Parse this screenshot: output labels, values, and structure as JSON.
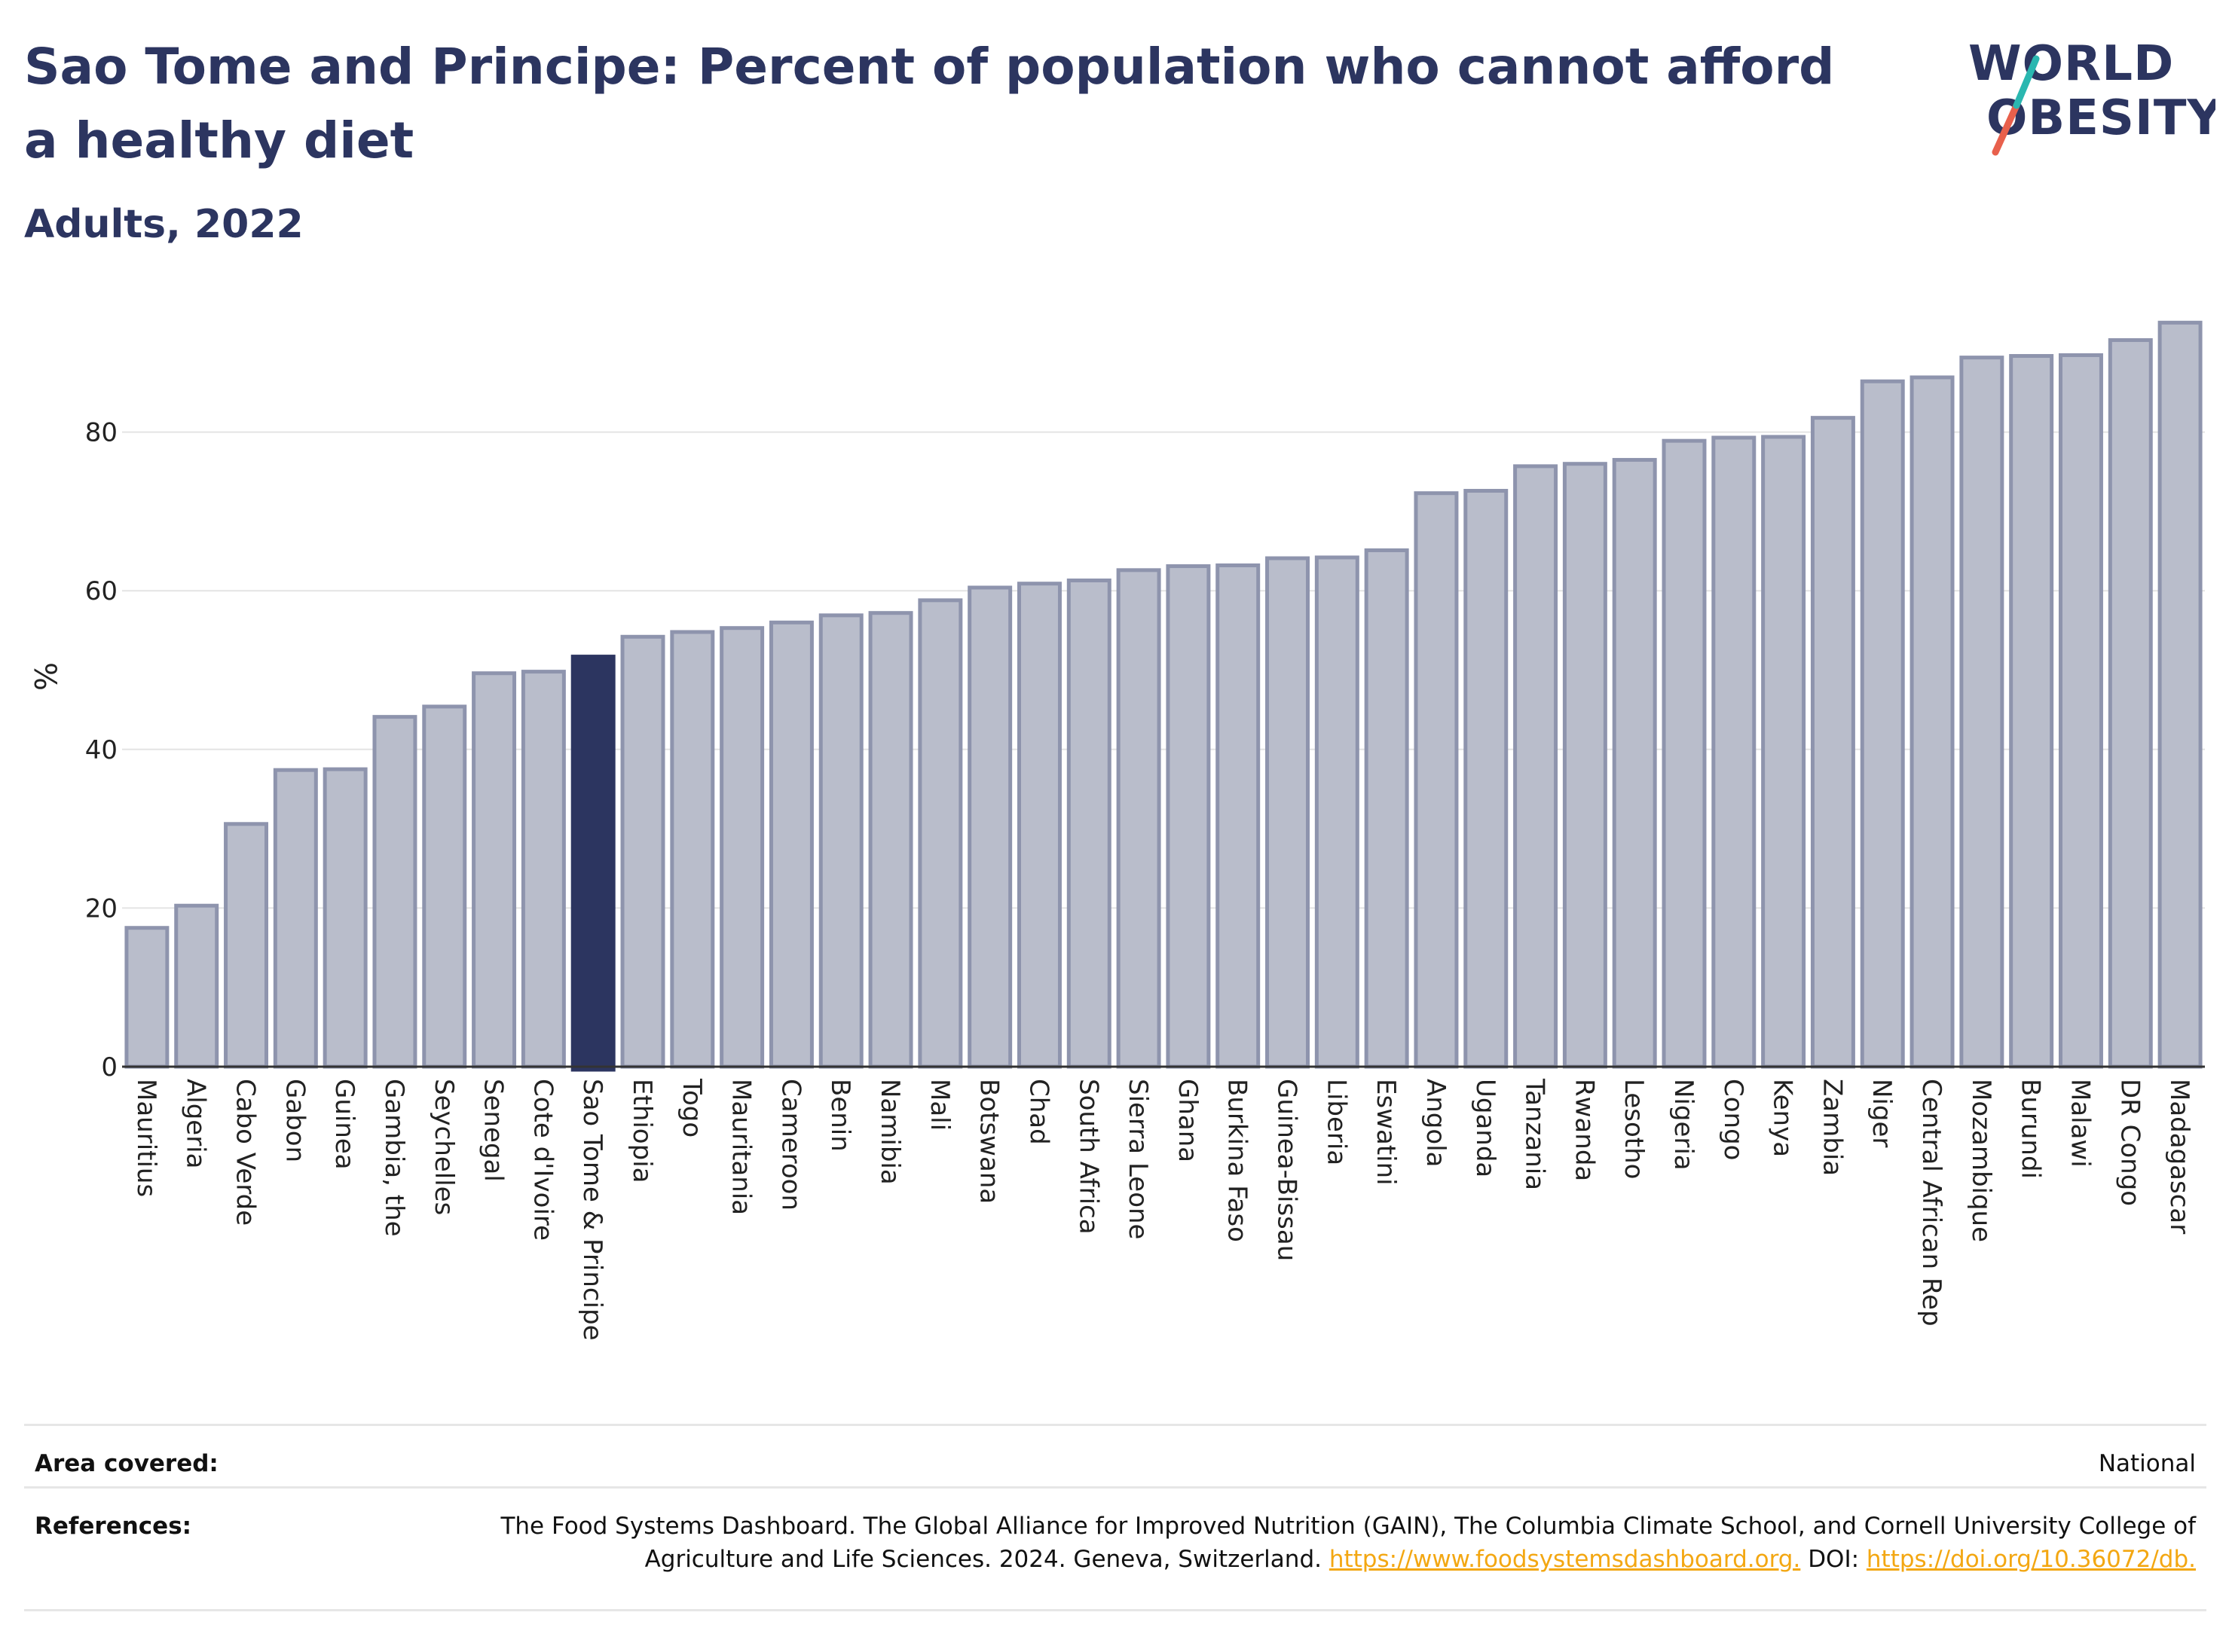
{
  "header": {
    "title": "Sao Tome and Principe: Percent of population who cannot afford a healthy diet",
    "subtitle": "Adults, 2022",
    "logo_line1": "WORLD",
    "logo_line2": "OBESITY"
  },
  "colors": {
    "bar": "#b9bdcb",
    "bar_border": "#8e94ad",
    "highlight": "#2c3560",
    "title": "#2c3560",
    "link": "#f3a712",
    "logo_slash_top": "#2ab7b0",
    "logo_slash_bottom": "#e8604c"
  },
  "chart_data": {
    "type": "bar",
    "title": "",
    "xlabel": "",
    "ylabel": "%",
    "ylim": [
      0,
      95
    ],
    "yticks": [
      0,
      20,
      40,
      60,
      80
    ],
    "grid": true,
    "highlight": "Sao Tome & Principe",
    "categories": [
      "Mauritius",
      "Algeria",
      "Cabo Verde",
      "Gabon",
      "Guinea",
      "Gambia, the",
      "Seychelles",
      "Senegal",
      "Cote d'Ivoire",
      "Sao Tome & Principe",
      "Ethiopia",
      "Togo",
      "Mauritania",
      "Cameroon",
      "Benin",
      "Namibia",
      "Mali",
      "Botswana",
      "Chad",
      "South Africa",
      "Sierra Leone",
      "Ghana",
      "Burkina Faso",
      "Guinea-Bissau",
      "Liberia",
      "Eswatini",
      "Angola",
      "Uganda",
      "Tanzania",
      "Rwanda",
      "Lesotho",
      "Nigeria",
      "Congo",
      "Kenya",
      "Zambia",
      "Niger",
      "Central African Rep",
      "Mozambique",
      "Burundi",
      "Malawi",
      "DR Congo",
      "Madagascar"
    ],
    "values": [
      17.5,
      20.3,
      30.6,
      37.4,
      37.5,
      44.1,
      45.4,
      49.6,
      49.8,
      51.7,
      54.2,
      54.8,
      55.3,
      56.0,
      56.9,
      57.2,
      58.8,
      60.4,
      60.9,
      61.3,
      62.6,
      63.1,
      63.2,
      64.1,
      64.2,
      65.1,
      72.3,
      72.6,
      75.7,
      76.0,
      76.5,
      78.9,
      79.3,
      79.4,
      81.8,
      86.4,
      86.9,
      89.4,
      89.6,
      89.7,
      91.6,
      93.8
    ]
  },
  "info": {
    "area_label": "Area covered:",
    "area_value": "National",
    "ref_label": "References:",
    "ref_text": "The Food Systems Dashboard. The Global Alliance for Improved Nutrition (GAIN), The Columbia Climate School, and Cornell University College of Agriculture and Life Sciences. 2024. Geneva, Switzerland.",
    "ref_link1": "https://www.foodsystemsdashboard.org.",
    "ref_doi": "DOI:",
    "ref_link2": "https://doi.org/10.36072/db."
  }
}
